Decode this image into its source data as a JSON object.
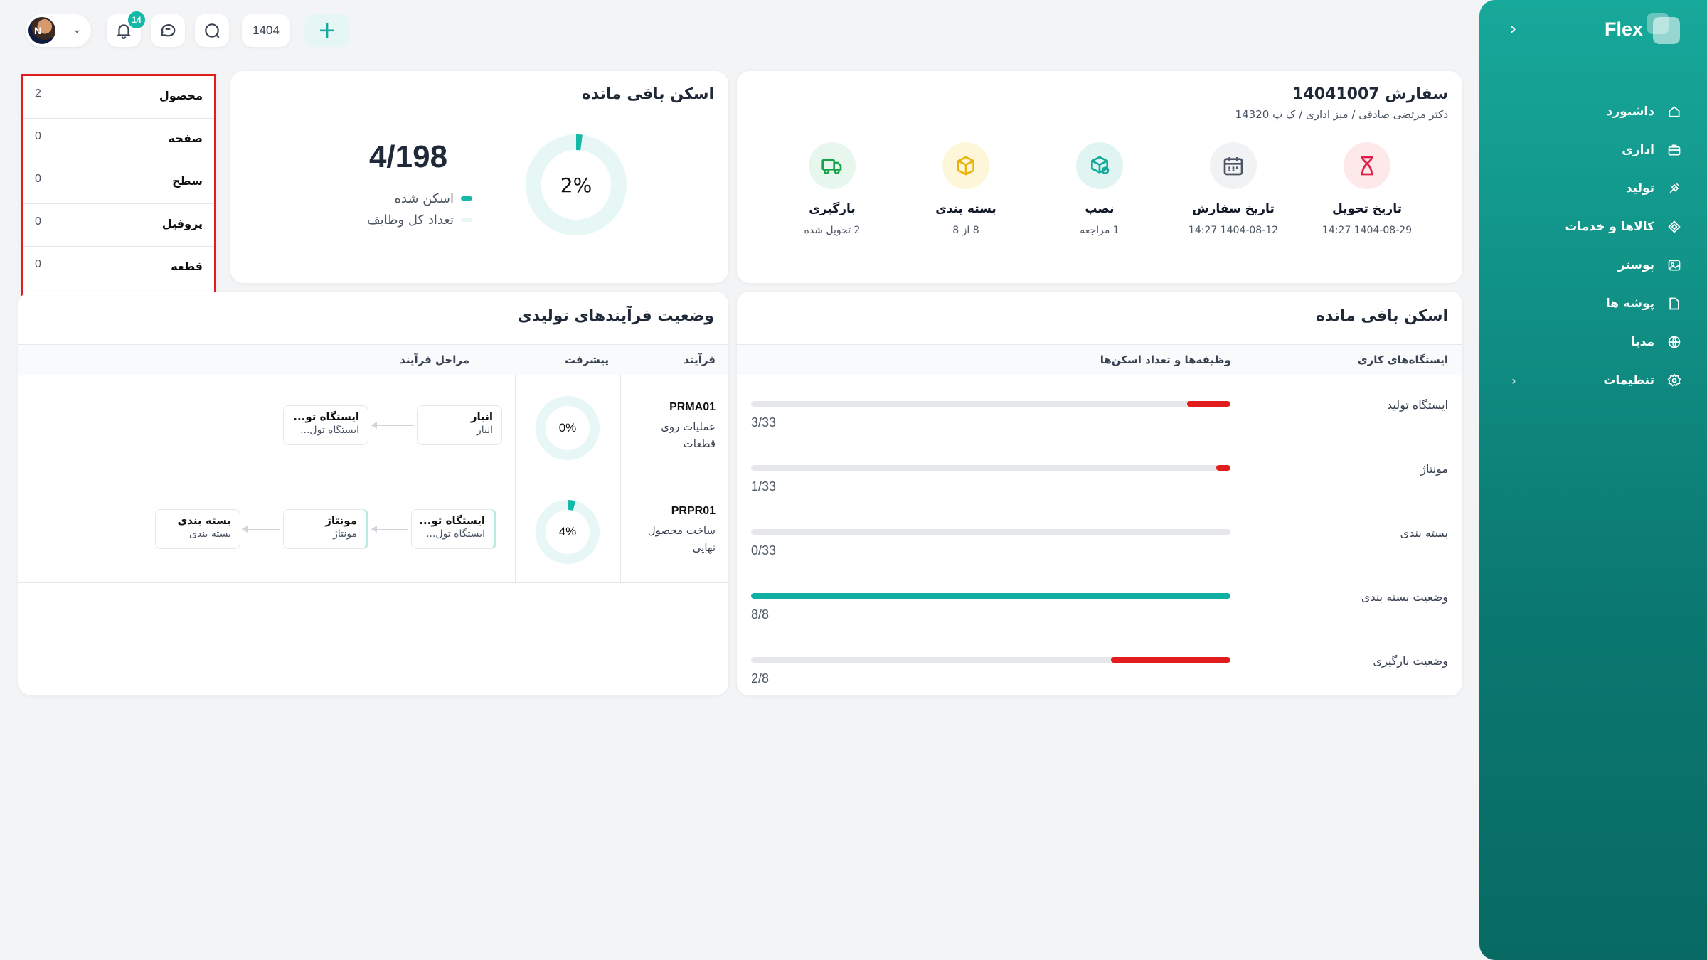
{
  "sidebar": {
    "brand": "Flex",
    "collapse_icon": "chevron-left-icon",
    "items": [
      {
        "label": "داشبورد",
        "icon": "home-icon"
      },
      {
        "label": "اداری",
        "icon": "briefcase-icon"
      },
      {
        "label": "تولید",
        "icon": "production-icon"
      },
      {
        "label": "کالاها و خدمات",
        "icon": "diamond-icon"
      },
      {
        "label": "پوستر",
        "icon": "image-icon"
      },
      {
        "label": "پوشه ها",
        "icon": "folder-icon"
      },
      {
        "label": "مدیا",
        "icon": "globe-icon"
      },
      {
        "label": "تنظیمات",
        "icon": "gear-icon",
        "has_submenu": true
      }
    ]
  },
  "topbar": {
    "avatar_initial": "N",
    "notifications_count": "14",
    "year": "1404",
    "add_label": "+"
  },
  "order": {
    "title": "سفارش 14041007",
    "subtitle": "دکتر مرتضی صادقی / میز اداری / ک پ 14320",
    "stages": [
      {
        "title": "بارگیری",
        "sub": "2 تحویل شده",
        "icon": "truck-icon",
        "color": "#16a34a",
        "bg": "#e8f7ee"
      },
      {
        "title": "بسته بندی",
        "sub": "8 از 8",
        "icon": "box-icon",
        "color": "#eab308",
        "bg": "#fdf6d8"
      },
      {
        "title": "نصب",
        "sub": "1 مراجعه",
        "icon": "install-icon",
        "color": "#14a99a",
        "bg": "#e0f5f2"
      },
      {
        "title": "تاریخ سفارش",
        "sub": "1404-08-12 14:27",
        "icon": "calendar-icon",
        "color": "#4b5563",
        "bg": "#f1f2f4"
      },
      {
        "title": "تاریخ تحویل",
        "sub": "1404-08-29 14:27",
        "icon": "hourglass-icon",
        "color": "#e11d48",
        "bg": "#fde8ea"
      }
    ]
  },
  "scan_summary": {
    "title": "اسکن باقی مانده",
    "percent_label": "2%",
    "percent": 2,
    "count": "4/198",
    "legend_scanned": "اسکن شده",
    "legend_total": "تعداد کل وظایف",
    "color_scanned": "#14b8a6",
    "color_total": "#e6f7f5"
  },
  "counts": [
    {
      "label": "محصول",
      "value": "2"
    },
    {
      "label": "صفحه",
      "value": "0"
    },
    {
      "label": "سطح",
      "value": "0"
    },
    {
      "label": "پروفیل",
      "value": "0"
    },
    {
      "label": "قطعه",
      "value": "0"
    }
  ],
  "remaining": {
    "title": "اسکن باقی مانده",
    "col_stations": "ایستگاه‌های کاری",
    "col_tasks": "وظیفه‌ها و تعداد اسکن‌ها",
    "rows": [
      {
        "name": "ایستگاه تولید",
        "ratio": "3/33",
        "progress": 0.09,
        "color": "#e11d1d"
      },
      {
        "name": "مونتاژ",
        "ratio": "1/33",
        "progress": 0.03,
        "color": "#e11d1d"
      },
      {
        "name": "بسته بندی",
        "ratio": "0/33",
        "progress": 0,
        "color": "#e11d1d"
      },
      {
        "name": "وضعیت بسته بندی",
        "ratio": "8/8",
        "progress": 1,
        "color": "#0fb0a2"
      },
      {
        "name": "وضعیت بارگیری",
        "ratio": "2/8",
        "progress": 0.25,
        "color": "#e11d1d"
      }
    ]
  },
  "processes": {
    "title": "وضعیت فرآیندهای تولیدی",
    "col_process": "فرآیند",
    "col_progress": "پیشرفت",
    "col_steps": "مراحل فرآیند",
    "rows": [
      {
        "code": "PRMA01",
        "desc": "عملیات روی قطعات",
        "percent_label": "0%",
        "percent": 0,
        "steps": [
          {
            "title": "انبار",
            "sub": "انبار",
            "active": false
          },
          {
            "title": "ایستگاه تو...",
            "sub": "ایستگاه تول...",
            "active": false
          }
        ]
      },
      {
        "code": "PRPR01",
        "desc": "ساخت محصول نهایی",
        "percent_label": "4%",
        "percent": 4,
        "steps": [
          {
            "title": "ایستگاه تو...",
            "sub": "ایستگاه تول...",
            "active": true
          },
          {
            "title": "مونتاژ",
            "sub": "مونتاژ",
            "active": true
          },
          {
            "title": "بسته بندی",
            "sub": "بسته بندی",
            "active": false
          }
        ]
      }
    ]
  }
}
